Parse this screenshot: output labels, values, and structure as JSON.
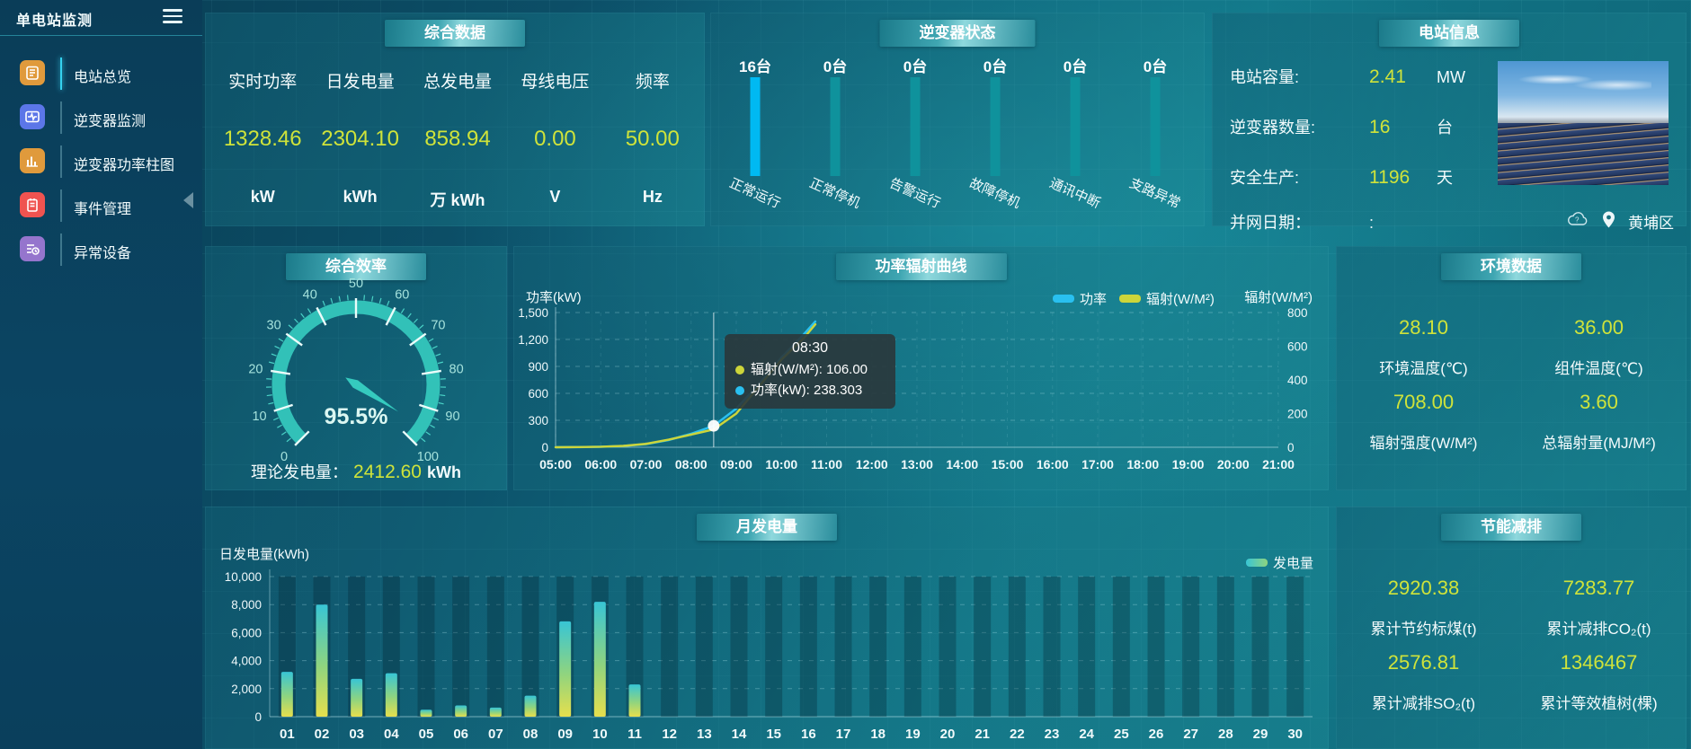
{
  "app": {
    "title": "单电站监测"
  },
  "sidebar": {
    "items": [
      {
        "label": "电站总览",
        "icon": "overview",
        "icon_color": "#e09a3c",
        "active": true
      },
      {
        "label": "逆变器监测",
        "icon": "inverter-monitor",
        "icon_color": "#5b76e8",
        "active": false
      },
      {
        "label": "逆变器功率柱图",
        "icon": "power-bars",
        "icon_color": "#e09a3c",
        "active": false
      },
      {
        "label": "事件管理",
        "icon": "events",
        "icon_color": "#ef5350",
        "active": false
      },
      {
        "label": "异常设备",
        "icon": "abnormal-devices",
        "icon_color": "#9575cd",
        "active": false
      }
    ]
  },
  "panels": {
    "summary": {
      "title": "综合数据",
      "items": [
        {
          "label": "实时功率",
          "value": "1328.46",
          "unit": "kW"
        },
        {
          "label": "日发电量",
          "value": "2304.10",
          "unit": "kWh"
        },
        {
          "label": "总发电量",
          "value": "858.94",
          "unit": "万 kWh"
        },
        {
          "label": "母线电压",
          "value": "0.00",
          "unit": "V"
        },
        {
          "label": "频率",
          "value": "50.00",
          "unit": "Hz"
        }
      ]
    },
    "inverter_status": {
      "title": "逆变器状态"
    },
    "station_info": {
      "title": "电站信息",
      "rows": [
        {
          "label": "电站容量:",
          "value": "2.41",
          "unit": "MW"
        },
        {
          "label": "逆变器数量:",
          "value": "16",
          "unit": "台"
        },
        {
          "label": "安全生产:",
          "value": "1196",
          "unit": "天"
        },
        {
          "label": "并网日期：",
          "value": ":",
          "unit": ""
        }
      ],
      "location": "黄埔区"
    },
    "efficiency": {
      "title": "综合效率",
      "gauge_label": "95.5%",
      "footer_label": "理论发电量：",
      "footer_value": "2412.60",
      "footer_unit": "kWh"
    },
    "environment": {
      "title": "环境数据",
      "stats": [
        {
          "value": "28.10",
          "label": "环境温度(℃)"
        },
        {
          "value": "36.00",
          "label": "组件温度(℃)"
        },
        {
          "value": "708.00",
          "label": "辐射强度(W/M²)"
        },
        {
          "value": "3.60",
          "label": "总辐射量(MJ/M²)"
        }
      ]
    },
    "saving": {
      "title": "节能减排",
      "stats": [
        {
          "value": "2920.38",
          "label": "累计节约标煤(t)"
        },
        {
          "value": "7283.77",
          "label": "累计减排CO₂(t)"
        },
        {
          "value": "2576.81",
          "label": "累计减排SO₂(t)"
        },
        {
          "value": "1346467",
          "label": "累计等效植树(棵)"
        }
      ]
    }
  },
  "colors": {
    "accent_value": "#cfe33a",
    "panel_title_bar": "#3fa6b2",
    "grid_line": "#9adfe8"
  },
  "chart_data": [
    {
      "id": "power_radiation_curve",
      "type": "line",
      "title": "功率辐射曲线",
      "left_axis": {
        "label": "功率(kW)",
        "max": 1500,
        "ticks": [
          0,
          300,
          600,
          900,
          1200,
          1500
        ]
      },
      "right_axis": {
        "label": "辐射(W/M²)",
        "max": 800,
        "ticks": [
          0,
          200,
          400,
          600,
          800
        ]
      },
      "x_labels": [
        "05:00",
        "06:00",
        "07:00",
        "08:00",
        "09:00",
        "10:00",
        "11:00",
        "12:00",
        "13:00",
        "14:00",
        "15:00",
        "16:00",
        "17:00",
        "18:00",
        "19:00",
        "20:00",
        "21:00"
      ],
      "x_range": [
        5,
        21
      ],
      "series": [
        {
          "name": "功率",
          "color": "#29c0f0",
          "axis": "left",
          "points": [
            [
              5,
              0
            ],
            [
              5.5,
              1
            ],
            [
              6,
              5
            ],
            [
              6.5,
              14
            ],
            [
              7,
              35
            ],
            [
              7.5,
              80
            ],
            [
              8,
              150
            ],
            [
              8.5,
              238.303
            ],
            [
              9,
              430
            ],
            [
              9.5,
              700
            ],
            [
              10,
              1000
            ],
            [
              10.5,
              1260
            ],
            [
              10.75,
              1400
            ]
          ]
        },
        {
          "name": "辐射(W/M²)",
          "color": "#cdd53a",
          "axis": "right",
          "points": [
            [
              5,
              0
            ],
            [
              5.5,
              1
            ],
            [
              6,
              3
            ],
            [
              6.5,
              8
            ],
            [
              7,
              20
            ],
            [
              7.5,
              45
            ],
            [
              8,
              75
            ],
            [
              8.5,
              106
            ],
            [
              9,
              200
            ],
            [
              9.5,
              360
            ],
            [
              10,
              520
            ],
            [
              10.5,
              650
            ],
            [
              10.75,
              730
            ]
          ]
        }
      ],
      "tooltip": {
        "time": "08:30",
        "x": 8.5,
        "marker_value": 238.303,
        "lines": [
          {
            "color": "#cdd53a",
            "label": "辐射(W/M²): 106.00"
          },
          {
            "color": "#29c0f0",
            "label": "功率(kW): 238.303"
          }
        ]
      }
    },
    {
      "id": "monthly_generation",
      "type": "bar",
      "title": "月发电量",
      "ylabel": "日发电量(kWh)",
      "legend": "发电量",
      "categories": [
        "01",
        "02",
        "03",
        "04",
        "05",
        "06",
        "07",
        "08",
        "09",
        "10",
        "11",
        "12",
        "13",
        "14",
        "15",
        "16",
        "17",
        "18",
        "19",
        "20",
        "21",
        "22",
        "23",
        "24",
        "25",
        "26",
        "27",
        "28",
        "29",
        "30"
      ],
      "values": [
        3200,
        8000,
        2700,
        3100,
        500,
        800,
        650,
        1500,
        6800,
        8200,
        2300,
        0,
        0,
        0,
        0,
        0,
        0,
        0,
        0,
        0,
        0,
        0,
        0,
        0,
        0,
        0,
        0,
        0,
        0,
        0
      ],
      "ylim": [
        0,
        10000
      ],
      "yticks": [
        0,
        2000,
        4000,
        6000,
        8000,
        10000
      ],
      "bar_gradient": [
        "#38c5d5",
        "#8fd47f",
        "#e6df4d"
      ]
    },
    {
      "id": "inverter_status_bars",
      "type": "status-bar",
      "counts": [
        "16台",
        "0台",
        "0台",
        "0台",
        "0台",
        "0台"
      ],
      "values": [
        16,
        0,
        0,
        0,
        0,
        0
      ],
      "labels": [
        "正常运行",
        "正常停机",
        "告警运行",
        "故障停机",
        "通讯中断",
        "支路异常"
      ],
      "bar_color_active": "#00b9f2",
      "bar_color": "#0f929c"
    },
    {
      "id": "efficiency_gauge",
      "type": "gauge",
      "value": 95.5,
      "min": 0,
      "max": 100,
      "tick_interval": 10,
      "band_color": "#35cabe"
    }
  ]
}
